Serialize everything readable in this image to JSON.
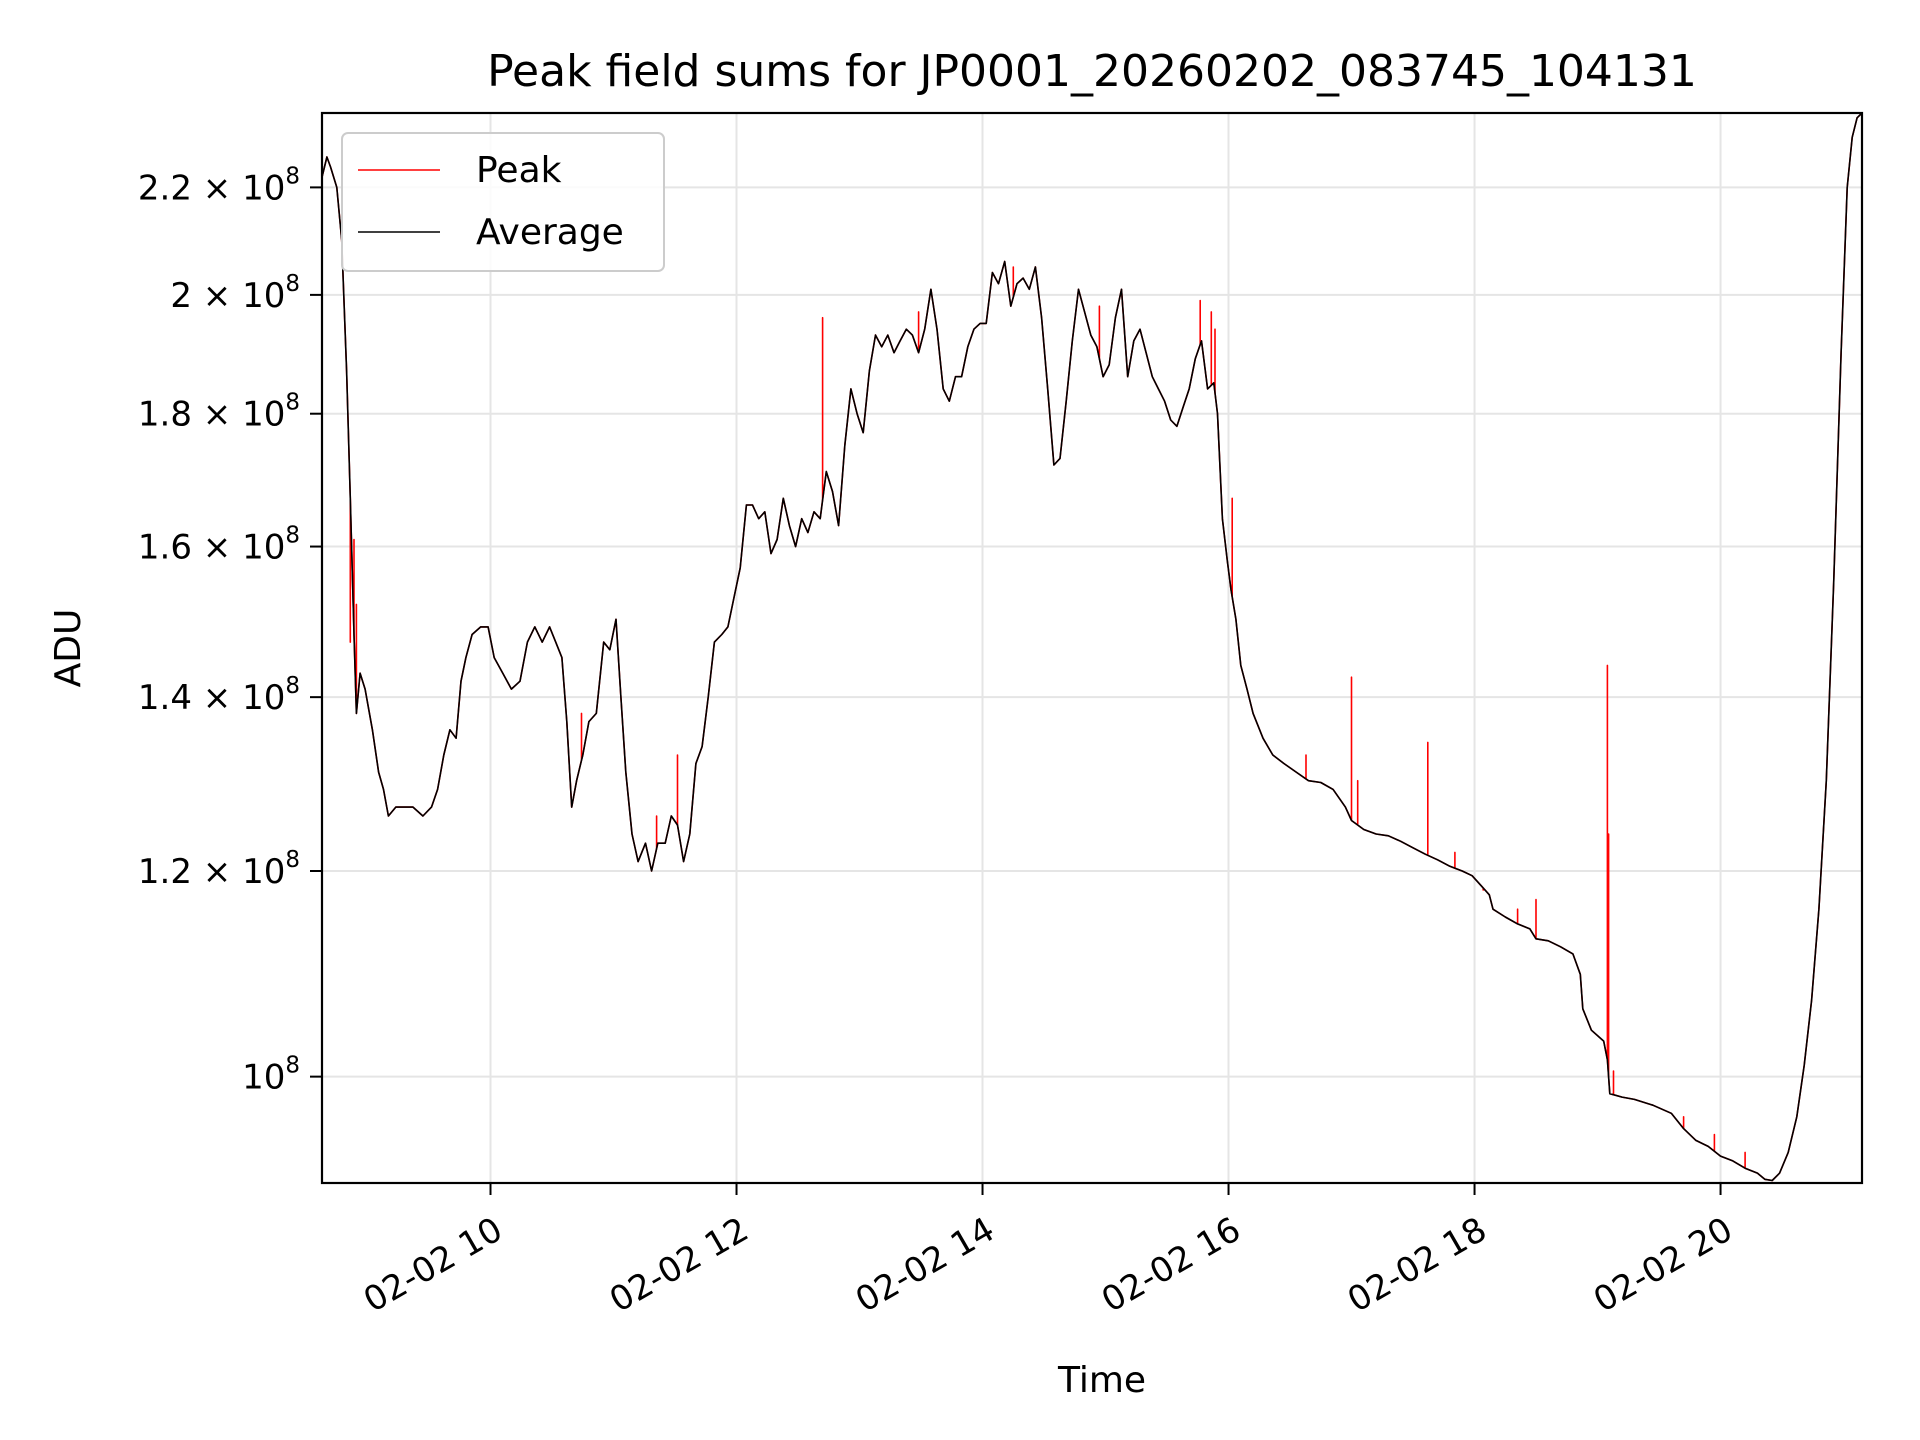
{
  "chart_data": {
    "type": "line",
    "title": "Peak field sums for JP0001_20260202_083745_104131",
    "xlabel": "Time",
    "ylabel": "ADU",
    "yscale": "log",
    "ylim": [
      91000000,
      235000000
    ],
    "xlim": [
      8.63,
      21.15
    ],
    "grid": true,
    "legend_position": "top-left",
    "x_ticks": [
      {
        "value": 10,
        "label": "02-02 10"
      },
      {
        "value": 12,
        "label": "02-02 12"
      },
      {
        "value": 14,
        "label": "02-02 14"
      },
      {
        "value": 16,
        "label": "02-02 16"
      },
      {
        "value": 18,
        "label": "02-02 18"
      },
      {
        "value": 20,
        "label": "02-02 20"
      }
    ],
    "y_ticks": [
      {
        "value": 100000000,
        "mantissa": "",
        "exp": "8"
      },
      {
        "value": 120000000,
        "mantissa": "1.2",
        "exp": "8"
      },
      {
        "value": 140000000,
        "mantissa": "1.4",
        "exp": "8"
      },
      {
        "value": 160000000,
        "mantissa": "1.6",
        "exp": "8"
      },
      {
        "value": 180000000,
        "mantissa": "1.8",
        "exp": "8"
      },
      {
        "value": 200000000,
        "mantissa": "2",
        "exp": "8"
      },
      {
        "value": 220000000,
        "mantissa": "2.2",
        "exp": "8"
      }
    ],
    "series": [
      {
        "name": "Average",
        "color": "#000000",
        "unit": "1e8 ADU",
        "points": [
          [
            8.63,
            2.22
          ],
          [
            8.67,
            2.26
          ],
          [
            8.7,
            2.24
          ],
          [
            8.75,
            2.2
          ],
          [
            8.79,
            2.1
          ],
          [
            8.83,
            1.87
          ],
          [
            8.86,
            1.67
          ],
          [
            8.89,
            1.48
          ],
          [
            8.91,
            1.38
          ],
          [
            8.94,
            1.43
          ],
          [
            8.98,
            1.41
          ],
          [
            9.04,
            1.36
          ],
          [
            9.09,
            1.31
          ],
          [
            9.13,
            1.29
          ],
          [
            9.17,
            1.26
          ],
          [
            9.23,
            1.27
          ],
          [
            9.3,
            1.27
          ],
          [
            9.37,
            1.27
          ],
          [
            9.45,
            1.26
          ],
          [
            9.52,
            1.27
          ],
          [
            9.57,
            1.29
          ],
          [
            9.62,
            1.33
          ],
          [
            9.67,
            1.36
          ],
          [
            9.72,
            1.35
          ],
          [
            9.76,
            1.42
          ],
          [
            9.8,
            1.45
          ],
          [
            9.85,
            1.48
          ],
          [
            9.92,
            1.49
          ],
          [
            9.98,
            1.49
          ],
          [
            10.03,
            1.45
          ],
          [
            10.1,
            1.43
          ],
          [
            10.17,
            1.41
          ],
          [
            10.24,
            1.42
          ],
          [
            10.3,
            1.47
          ],
          [
            10.36,
            1.49
          ],
          [
            10.42,
            1.47
          ],
          [
            10.48,
            1.49
          ],
          [
            10.53,
            1.47
          ],
          [
            10.58,
            1.45
          ],
          [
            10.62,
            1.37
          ],
          [
            10.66,
            1.27
          ],
          [
            10.7,
            1.3
          ],
          [
            10.75,
            1.33
          ],
          [
            10.8,
            1.37
          ],
          [
            10.86,
            1.38
          ],
          [
            10.92,
            1.47
          ],
          [
            10.97,
            1.46
          ],
          [
            11.02,
            1.5
          ],
          [
            11.06,
            1.4
          ],
          [
            11.1,
            1.31
          ],
          [
            11.15,
            1.24
          ],
          [
            11.2,
            1.21
          ],
          [
            11.26,
            1.23
          ],
          [
            11.31,
            1.2
          ],
          [
            11.36,
            1.23
          ],
          [
            11.42,
            1.23
          ],
          [
            11.47,
            1.26
          ],
          [
            11.52,
            1.25
          ],
          [
            11.57,
            1.21
          ],
          [
            11.62,
            1.24
          ],
          [
            11.67,
            1.32
          ],
          [
            11.72,
            1.34
          ],
          [
            11.77,
            1.4
          ],
          [
            11.82,
            1.47
          ],
          [
            11.88,
            1.48
          ],
          [
            11.93,
            1.49
          ],
          [
            11.98,
            1.53
          ],
          [
            12.03,
            1.57
          ],
          [
            12.08,
            1.66
          ],
          [
            12.13,
            1.66
          ],
          [
            12.18,
            1.64
          ],
          [
            12.23,
            1.65
          ],
          [
            12.28,
            1.59
          ],
          [
            12.33,
            1.61
          ],
          [
            12.38,
            1.67
          ],
          [
            12.43,
            1.63
          ],
          [
            12.48,
            1.6
          ],
          [
            12.53,
            1.64
          ],
          [
            12.58,
            1.62
          ],
          [
            12.63,
            1.65
          ],
          [
            12.68,
            1.64
          ],
          [
            12.73,
            1.71
          ],
          [
            12.78,
            1.68
          ],
          [
            12.83,
            1.63
          ],
          [
            12.88,
            1.75
          ],
          [
            12.93,
            1.84
          ],
          [
            12.98,
            1.8
          ],
          [
            13.03,
            1.77
          ],
          [
            13.08,
            1.87
          ],
          [
            13.13,
            1.93
          ],
          [
            13.18,
            1.91
          ],
          [
            13.23,
            1.93
          ],
          [
            13.28,
            1.9
          ],
          [
            13.33,
            1.92
          ],
          [
            13.38,
            1.94
          ],
          [
            13.43,
            1.93
          ],
          [
            13.48,
            1.9
          ],
          [
            13.53,
            1.94
          ],
          [
            13.58,
            2.01
          ],
          [
            13.63,
            1.94
          ],
          [
            13.68,
            1.84
          ],
          [
            13.73,
            1.82
          ],
          [
            13.78,
            1.86
          ],
          [
            13.83,
            1.86
          ],
          [
            13.88,
            1.91
          ],
          [
            13.93,
            1.94
          ],
          [
            13.98,
            1.95
          ],
          [
            14.03,
            1.95
          ],
          [
            14.08,
            2.04
          ],
          [
            14.13,
            2.02
          ],
          [
            14.18,
            2.06
          ],
          [
            14.23,
            1.98
          ],
          [
            14.28,
            2.02
          ],
          [
            14.33,
            2.03
          ],
          [
            14.38,
            2.01
          ],
          [
            14.43,
            2.05
          ],
          [
            14.48,
            1.96
          ],
          [
            14.53,
            1.84
          ],
          [
            14.58,
            1.72
          ],
          [
            14.63,
            1.73
          ],
          [
            14.68,
            1.82
          ],
          [
            14.73,
            1.92
          ],
          [
            14.78,
            2.01
          ],
          [
            14.83,
            1.97
          ],
          [
            14.88,
            1.93
          ],
          [
            14.93,
            1.91
          ],
          [
            14.98,
            1.86
          ],
          [
            15.03,
            1.88
          ],
          [
            15.08,
            1.96
          ],
          [
            15.13,
            2.01
          ],
          [
            15.18,
            1.86
          ],
          [
            15.23,
            1.92
          ],
          [
            15.28,
            1.94
          ],
          [
            15.33,
            1.9
          ],
          [
            15.38,
            1.86
          ],
          [
            15.43,
            1.84
          ],
          [
            15.48,
            1.82
          ],
          [
            15.53,
            1.79
          ],
          [
            15.58,
            1.78
          ],
          [
            15.63,
            1.81
          ],
          [
            15.68,
            1.84
          ],
          [
            15.73,
            1.89
          ],
          [
            15.78,
            1.92
          ],
          [
            15.83,
            1.84
          ],
          [
            15.88,
            1.85
          ],
          [
            15.91,
            1.8
          ],
          [
            15.95,
            1.64
          ],
          [
            15.99,
            1.58
          ],
          [
            16.02,
            1.54
          ],
          [
            16.06,
            1.5
          ],
          [
            16.1,
            1.44
          ],
          [
            16.15,
            1.41
          ],
          [
            16.2,
            1.38
          ],
          [
            16.28,
            1.35
          ],
          [
            16.36,
            1.33
          ],
          [
            16.45,
            1.32
          ],
          [
            16.55,
            1.31
          ],
          [
            16.65,
            1.3
          ],
          [
            16.75,
            1.298
          ],
          [
            16.85,
            1.29
          ],
          [
            16.95,
            1.27
          ],
          [
            17.0,
            1.255
          ],
          [
            17.1,
            1.245
          ],
          [
            17.2,
            1.24
          ],
          [
            17.3,
            1.238
          ],
          [
            17.4,
            1.232
          ],
          [
            17.5,
            1.225
          ],
          [
            17.6,
            1.218
          ],
          [
            17.7,
            1.212
          ],
          [
            17.8,
            1.205
          ],
          [
            17.9,
            1.2
          ],
          [
            17.98,
            1.195
          ],
          [
            18.05,
            1.185
          ],
          [
            18.12,
            1.175
          ],
          [
            18.15,
            1.16
          ],
          [
            18.25,
            1.152
          ],
          [
            18.35,
            1.145
          ],
          [
            18.45,
            1.14
          ],
          [
            18.5,
            1.13
          ],
          [
            18.6,
            1.128
          ],
          [
            18.7,
            1.122
          ],
          [
            18.8,
            1.115
          ],
          [
            18.86,
            1.095
          ],
          [
            18.88,
            1.062
          ],
          [
            18.95,
            1.042
          ],
          [
            19.05,
            1.032
          ],
          [
            19.08,
            1.015
          ],
          [
            19.1,
            0.985
          ],
          [
            19.2,
            0.982
          ],
          [
            19.3,
            0.98
          ],
          [
            19.45,
            0.975
          ],
          [
            19.6,
            0.968
          ],
          [
            19.7,
            0.955
          ],
          [
            19.8,
            0.945
          ],
          [
            19.9,
            0.94
          ],
          [
            20.0,
            0.932
          ],
          [
            20.1,
            0.928
          ],
          [
            20.2,
            0.922
          ],
          [
            20.3,
            0.918
          ],
          [
            20.36,
            0.913
          ],
          [
            20.42,
            0.912
          ],
          [
            20.48,
            0.918
          ],
          [
            20.55,
            0.935
          ],
          [
            20.62,
            0.965
          ],
          [
            20.68,
            1.01
          ],
          [
            20.74,
            1.07
          ],
          [
            20.8,
            1.16
          ],
          [
            20.86,
            1.3
          ],
          [
            20.92,
            1.55
          ],
          [
            20.98,
            1.9
          ],
          [
            21.03,
            2.2
          ],
          [
            21.07,
            2.3
          ],
          [
            21.11,
            2.34
          ],
          [
            21.15,
            2.35
          ]
        ]
      },
      {
        "name": "Peak",
        "color": "#ff0000",
        "unit": "1e8 ADU",
        "spikes": [
          [
            8.89,
            1.61
          ],
          [
            8.91,
            1.52
          ],
          [
            8.86,
            1.47
          ],
          [
            10.74,
            1.38
          ],
          [
            11.52,
            1.33
          ],
          [
            11.35,
            1.26
          ],
          [
            12.7,
            1.96
          ],
          [
            13.48,
            1.97
          ],
          [
            14.25,
            2.05
          ],
          [
            14.95,
            1.98
          ],
          [
            15.77,
            1.99
          ],
          [
            15.86,
            1.97
          ],
          [
            15.89,
            1.94
          ],
          [
            16.03,
            1.67
          ],
          [
            16.63,
            1.33
          ],
          [
            17.0,
            1.425
          ],
          [
            17.05,
            1.3
          ],
          [
            17.62,
            1.345
          ],
          [
            17.84,
            1.22
          ],
          [
            18.07,
            1.18
          ],
          [
            18.35,
            1.16
          ],
          [
            18.5,
            1.17
          ],
          [
            19.08,
            1.44
          ],
          [
            19.09,
            1.24
          ],
          [
            19.13,
            1.005
          ],
          [
            19.7,
            0.965
          ],
          [
            19.95,
            0.95
          ],
          [
            20.2,
            0.935
          ]
        ]
      }
    ]
  }
}
